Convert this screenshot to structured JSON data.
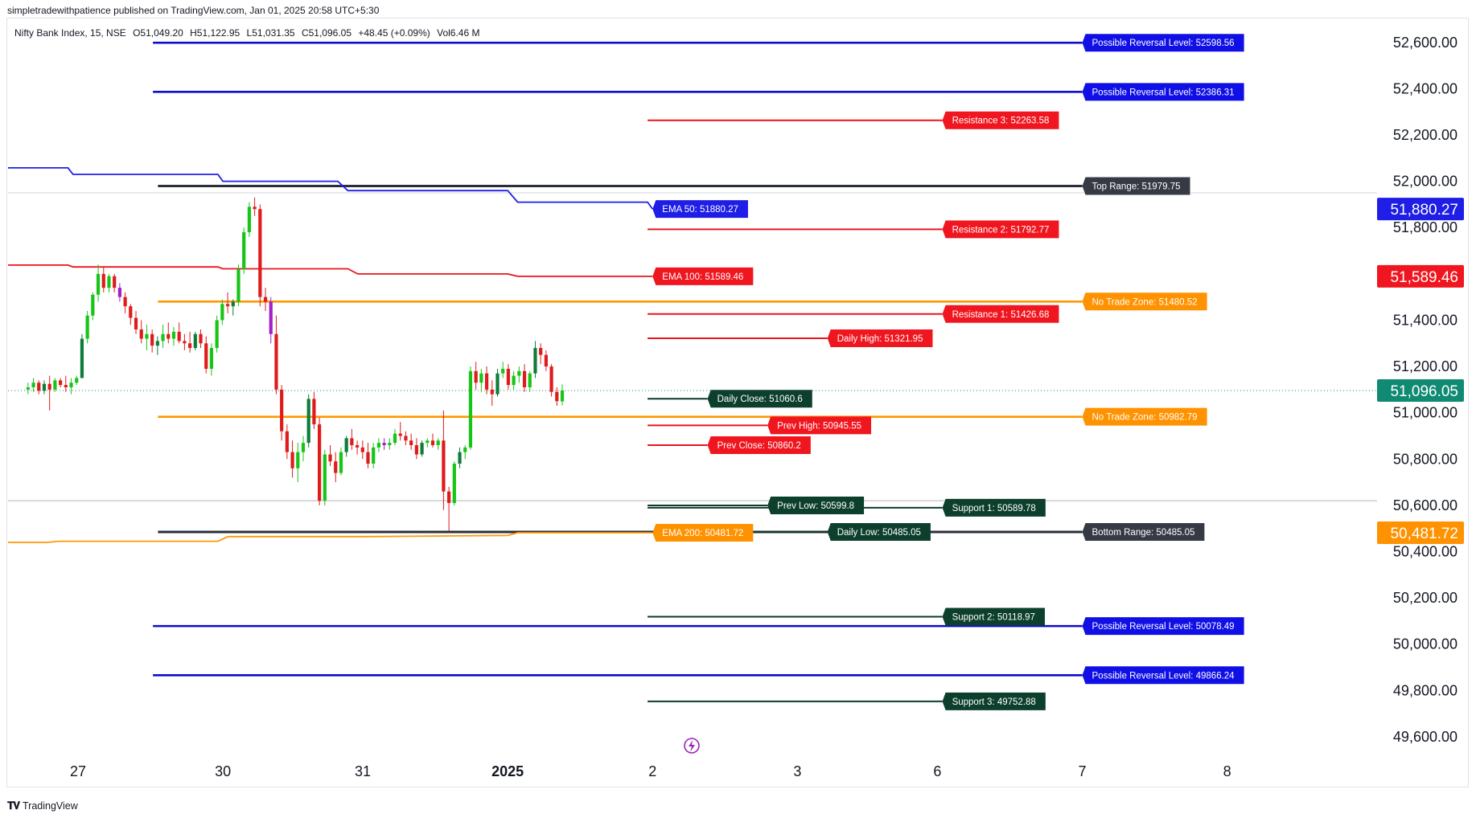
{
  "publisher": "simpletradewithpatience published on TradingView.com, Jan 01, 2025 20:58 UTC+5:30",
  "legend": {
    "symbol": "Nifty Bank Index, 15, NSE",
    "open": "O51,049.20",
    "high": "H51,122.95",
    "low": "L51,031.35",
    "close": "C51,096.05",
    "change": "+48.45 (+0.09%)",
    "volume": "Vol6.46 M"
  },
  "footer": {
    "brand": "TradingView",
    "logo_icon": "tradingview-logo-icon"
  },
  "chart_data": {
    "type": "candlestick",
    "y_range": [
      49520,
      52700
    ],
    "y_ticks": [
      {
        "value": 52600,
        "label": "52,600.00"
      },
      {
        "value": 52400,
        "label": "52,400.00"
      },
      {
        "value": 52200,
        "label": "52,200.00"
      },
      {
        "value": 52000,
        "label": "52,000.00"
      },
      {
        "value": 51800,
        "label": "51,800.00"
      },
      {
        "value": 51400,
        "label": "51,400.00"
      },
      {
        "value": 51200,
        "label": "51,200.00"
      },
      {
        "value": 51000,
        "label": "51,000.00"
      },
      {
        "value": 50800,
        "label": "50,800.00"
      },
      {
        "value": 50600,
        "label": "50,600.00"
      },
      {
        "value": 50400,
        "label": "50,400.00"
      },
      {
        "value": 50200,
        "label": "50,200.00"
      },
      {
        "value": 50000,
        "label": "50,000.00"
      },
      {
        "value": 49800,
        "label": "49,800.00"
      },
      {
        "value": 49600,
        "label": "49,600.00"
      }
    ],
    "x_range": [
      -4,
      270
    ],
    "x_ticks": [
      {
        "label": "27",
        "bar": 10,
        "bold": false
      },
      {
        "label": "30",
        "bar": 39,
        "bold": false
      },
      {
        "label": "31",
        "bar": 67,
        "bold": false
      },
      {
        "label": "2025",
        "bar": 96,
        "bold": true
      },
      {
        "label": "2",
        "bar": 125,
        "bold": false
      },
      {
        "label": "3",
        "bar": 154,
        "bold": false
      },
      {
        "label": "6",
        "bar": 182,
        "bold": false
      },
      {
        "label": "7",
        "bar": 211,
        "bold": false
      },
      {
        "label": "8",
        "bar": 240,
        "bold": false
      }
    ],
    "price_tags": [
      {
        "label": "51,880.27",
        "value": 51880.27,
        "color": "#1e1ee6"
      },
      {
        "label": "51,589.46",
        "value": 51589.46,
        "color": "#f0161f"
      },
      {
        "label": "51,096.05",
        "value": 51096.05,
        "color": "#108a73"
      },
      {
        "label": "50,481.72",
        "value": 50481.72,
        "color": "#ff9200"
      }
    ],
    "current_price": 51096.05,
    "levels": [
      {
        "label": "Possible Reversal Level: 52598.56",
        "value": 52598.56,
        "start_bar": 25,
        "color": "#0c0ccc",
        "width": 2.6,
        "label_color": "#1010e6",
        "label_bar": 211
      },
      {
        "label": "Possible Reversal Level: 52386.31",
        "value": 52386.31,
        "start_bar": 25,
        "color": "#0c0ccc",
        "width": 2.6,
        "label_color": "#1010e6",
        "label_bar": 211
      },
      {
        "label": "Resistance 3: 52263.58",
        "value": 52263.58,
        "start_bar": 124,
        "color": "#e8141d",
        "width": 2,
        "label_color": "#f0161f",
        "label_bar": 183
      },
      {
        "label": "Top Range: 51979.75",
        "value": 51979.75,
        "start_bar": 26,
        "color": "#2a2e39",
        "width": 3,
        "label_color": "#363a45",
        "label_bar": 211
      },
      {
        "label": "Resistance 2: 51792.77",
        "value": 51792.77,
        "start_bar": 124,
        "color": "#e8141d",
        "width": 2,
        "label_color": "#f0161f",
        "label_bar": 183
      },
      {
        "label": "No Trade Zone: 51480.52",
        "value": 51480.52,
        "start_bar": 26,
        "color": "#ff9800",
        "width": 2.6,
        "label_color": "#ff9200",
        "label_bar": 211
      },
      {
        "label": "Resistance 1: 51426.68",
        "value": 51426.68,
        "start_bar": 124,
        "color": "#e8141d",
        "width": 2,
        "label_color": "#f0161f",
        "label_bar": 183
      },
      {
        "label": "Daily High: 51321.95",
        "value": 51321.95,
        "start_bar": 124,
        "color": "#e8141d",
        "width": 2,
        "label_color": "#f0161f",
        "label_bar": 160
      },
      {
        "label": "Daily Close: 51060.6",
        "value": 51060.6,
        "start_bar": 124,
        "color": "#0d3b2a",
        "width": 2,
        "label_color": "#0d3f2d",
        "label_bar": 136
      },
      {
        "label": "No Trade Zone: 50982.79",
        "value": 50982.79,
        "start_bar": 26,
        "color": "#ff9800",
        "width": 2.6,
        "label_color": "#ff9200",
        "label_bar": 211
      },
      {
        "label": "Prev High: 50945.55",
        "value": 50945.55,
        "start_bar": 124,
        "color": "#e8141d",
        "width": 2,
        "label_color": "#f0161f",
        "label_bar": 148
      },
      {
        "label": "Prev Close: 50860.2",
        "value": 50860.2,
        "start_bar": 124,
        "color": "#e8141d",
        "width": 2,
        "label_color": "#f0161f",
        "label_bar": 136
      },
      {
        "label": "Prev Low: 50599.8",
        "value": 50599.8,
        "start_bar": 124,
        "color": "#0d3b2a",
        "width": 2,
        "label_color": "#0d3f2d",
        "label_bar": 148
      },
      {
        "label": "Support 1: 50589.78",
        "value": 50589.78,
        "start_bar": 124,
        "color": "#0d3b2a",
        "width": 2,
        "label_color": "#0d3f2d",
        "label_bar": 183
      },
      {
        "label": "Bottom Range: 50485.05",
        "value": 50485.05,
        "start_bar": 26,
        "color": "#2a2e39",
        "width": 3,
        "label_color": "#363a45",
        "label_bar": 211
      },
      {
        "label": "Daily Low: 50485.05",
        "value": 50485.05,
        "start_bar": 124,
        "color": "#0d3b2a",
        "width": 2,
        "label_color": "#0d3f2d",
        "label_bar": 160
      },
      {
        "label": "Support 2: 50118.97",
        "value": 50118.97,
        "start_bar": 124,
        "color": "#0d3b2a",
        "width": 2,
        "label_color": "#0d3f2d",
        "label_bar": 183
      },
      {
        "label": "Possible Reversal Level: 50078.49",
        "value": 50078.49,
        "start_bar": 25,
        "color": "#0c0ccc",
        "width": 2.6,
        "label_color": "#1010e6",
        "label_bar": 211
      },
      {
        "label": "Possible Reversal Level: 49866.24",
        "value": 49866.24,
        "start_bar": 25,
        "color": "#0c0ccc",
        "width": 2.6,
        "label_color": "#1010e6",
        "label_bar": 211
      },
      {
        "label": "Support 3: 49752.88",
        "value": 49752.88,
        "start_bar": 124,
        "color": "#0d3b2a",
        "width": 2,
        "label_color": "#0d3f2d",
        "label_bar": 183
      }
    ],
    "ema_lines": [
      {
        "name": "EMA 50",
        "label": "EMA 50: 51880.27",
        "color": "#1e1ee6",
        "label_color": "#1e1ee6",
        "points": [
          [
            -4,
            52058
          ],
          [
            8,
            52058
          ],
          [
            9,
            52030
          ],
          [
            38,
            52030
          ],
          [
            39,
            52000
          ],
          [
            62,
            52000
          ],
          [
            64,
            51960
          ],
          [
            96,
            51960
          ],
          [
            98,
            51910
          ],
          [
            124,
            51910
          ],
          [
            125,
            51880.27
          ]
        ]
      },
      {
        "name": "EMA 100",
        "label": "EMA 100: 51589.46",
        "color": "#e8141d",
        "label_color": "#f0161f",
        "points": [
          [
            -4,
            51638
          ],
          [
            8,
            51638
          ],
          [
            9,
            51630
          ],
          [
            38,
            51630
          ],
          [
            39,
            51622
          ],
          [
            64,
            51622
          ],
          [
            66,
            51600
          ],
          [
            96,
            51600
          ],
          [
            98,
            51589.46
          ],
          [
            125,
            51589.46
          ]
        ]
      },
      {
        "name": "EMA 200",
        "label": "EMA 200: 50481.72",
        "color": "#ff9800",
        "label_color": "#ff9200",
        "points": [
          [
            -4,
            50440
          ],
          [
            4,
            50440
          ],
          [
            6,
            50445
          ],
          [
            38,
            50445
          ],
          [
            40,
            50465
          ],
          [
            68,
            50465
          ],
          [
            96,
            50470
          ],
          [
            98,
            50481.72
          ],
          [
            125,
            50481.72
          ]
        ]
      }
    ],
    "candles": [
      [
        51100,
        51130,
        51080,
        51110
      ],
      [
        51110,
        51150,
        51090,
        51130
      ],
      [
        51130,
        51140,
        51080,
        51095
      ],
      [
        51095,
        51140,
        51080,
        51125
      ],
      [
        51125,
        51160,
        51010,
        51100
      ],
      [
        51100,
        51150,
        51090,
        51140
      ],
      [
        51140,
        51150,
        51110,
        51120
      ],
      [
        51120,
        51160,
        51090,
        51110
      ],
      [
        51110,
        51150,
        51080,
        51130
      ],
      [
        51130,
        51160,
        51120,
        51150
      ],
      [
        51150,
        51340,
        51150,
        51320
      ],
      [
        51320,
        51440,
        51300,
        51420
      ],
      [
        51420,
        51520,
        51400,
        51510
      ],
      [
        51510,
        51640,
        51480,
        51600
      ],
      [
        51600,
        51630,
        51520,
        51540
      ],
      [
        51540,
        51600,
        51520,
        51590
      ],
      [
        51590,
        51600,
        51520,
        51540
      ],
      [
        51540,
        51560,
        51480,
        51500
      ],
      [
        51500,
        51520,
        51430,
        51460
      ],
      [
        51460,
        51470,
        51380,
        51410
      ],
      [
        51410,
        51440,
        51340,
        51360
      ],
      [
        51360,
        51400,
        51300,
        51320
      ],
      [
        51320,
        51380,
        51270,
        51340
      ],
      [
        51340,
        51360,
        51260,
        51290
      ],
      [
        51290,
        51330,
        51250,
        51310
      ],
      [
        51310,
        51380,
        51280,
        51340
      ],
      [
        51340,
        51390,
        51300,
        51320
      ],
      [
        51320,
        51370,
        51290,
        51350
      ],
      [
        51350,
        51390,
        51300,
        51310
      ],
      [
        51310,
        51340,
        51270,
        51300
      ],
      [
        51300,
        51350,
        51260,
        51280
      ],
      [
        51280,
        51350,
        51270,
        51340
      ],
      [
        51340,
        51360,
        51280,
        51300
      ],
      [
        51300,
        51330,
        51170,
        51190
      ],
      [
        51190,
        51300,
        51160,
        51280
      ],
      [
        51280,
        51420,
        51260,
        51400
      ],
      [
        51400,
        51490,
        51380,
        51470
      ],
      [
        51470,
        51520,
        51430,
        51460
      ],
      [
        51460,
        51490,
        51420,
        51480
      ],
      [
        51480,
        51640,
        51460,
        51620
      ],
      [
        51620,
        51800,
        51600,
        51780
      ],
      [
        51780,
        51910,
        51760,
        51890
      ],
      [
        51890,
        51930,
        51850,
        51880
      ],
      [
        51880,
        51900,
        51460,
        51500
      ],
      [
        51500,
        51540,
        51440,
        51480
      ],
      [
        51480,
        51500,
        51300,
        51340
      ],
      [
        51340,
        51420,
        51080,
        51100
      ],
      [
        51100,
        51120,
        50880,
        50920
      ],
      [
        50920,
        50950,
        50800,
        50830
      ],
      [
        50830,
        50880,
        50720,
        50760
      ],
      [
        50760,
        50870,
        50700,
        50830
      ],
      [
        50830,
        50900,
        50790,
        50870
      ],
      [
        50870,
        51080,
        50850,
        51060
      ],
      [
        51060,
        51090,
        50930,
        50950
      ],
      [
        50950,
        50980,
        50600,
        50620
      ],
      [
        50620,
        50840,
        50600,
        50820
      ],
      [
        50820,
        50860,
        50770,
        50790
      ],
      [
        50790,
        50830,
        50700,
        50740
      ],
      [
        50740,
        50850,
        50730,
        50830
      ],
      [
        50830,
        50900,
        50810,
        50890
      ],
      [
        50890,
        50930,
        50840,
        50860
      ],
      [
        50860,
        50880,
        50820,
        50850
      ],
      [
        50850,
        50880,
        50800,
        50830
      ],
      [
        50830,
        50870,
        50760,
        50780
      ],
      [
        50780,
        50870,
        50760,
        50850
      ],
      [
        50850,
        50890,
        50830,
        50870
      ],
      [
        50870,
        50890,
        50840,
        50860
      ],
      [
        50860,
        50890,
        50840,
        50870
      ],
      [
        50870,
        50930,
        50860,
        50910
      ],
      [
        50910,
        50960,
        50880,
        50900
      ],
      [
        50900,
        50920,
        50860,
        50880
      ],
      [
        50880,
        50910,
        50840,
        50860
      ],
      [
        50860,
        50890,
        50800,
        50820
      ],
      [
        50820,
        50880,
        50810,
        50870
      ],
      [
        50870,
        50890,
        50850,
        50880
      ],
      [
        50880,
        50910,
        50850,
        50860
      ],
      [
        50860,
        50890,
        50840,
        50880
      ],
      [
        50880,
        51010,
        50580,
        50660
      ],
      [
        50660,
        50680,
        50490,
        50610
      ],
      [
        50610,
        50790,
        50600,
        50780
      ],
      [
        50780,
        50850,
        50760,
        50830
      ],
      [
        50830,
        50860,
        50800,
        50850
      ],
      [
        50850,
        51200,
        50840,
        51180
      ],
      [
        51180,
        51220,
        51100,
        51130
      ],
      [
        51130,
        51190,
        51090,
        51170
      ],
      [
        51170,
        51200,
        51080,
        51100
      ],
      [
        51100,
        51140,
        51030,
        51080
      ],
      [
        51080,
        51190,
        51070,
        51170
      ],
      [
        51170,
        51220,
        51150,
        51190
      ],
      [
        51190,
        51210,
        51100,
        51120
      ],
      [
        51120,
        51180,
        51100,
        51160
      ],
      [
        51160,
        51200,
        51130,
        51180
      ],
      [
        51180,
        51210,
        51090,
        51110
      ],
      [
        51110,
        51180,
        51090,
        51170
      ],
      [
        51170,
        51310,
        51150,
        51280
      ],
      [
        51280,
        51300,
        51210,
        51250
      ],
      [
        51250,
        51270,
        51180,
        51200
      ],
      [
        51200,
        51210,
        51070,
        51090
      ],
      [
        51090,
        51110,
        51030,
        51050
      ],
      [
        51049.2,
        51122.95,
        51031.35,
        51096.05
      ]
    ],
    "candle_start_bar": 0,
    "candle_step": 1.08,
    "colors": {
      "up": "#17c517",
      "down": "#e01b1b",
      "up_alt": "#0d7d3a",
      "down_alt": "#a020c8"
    }
  },
  "icons": {
    "flash": "flash-icon"
  }
}
